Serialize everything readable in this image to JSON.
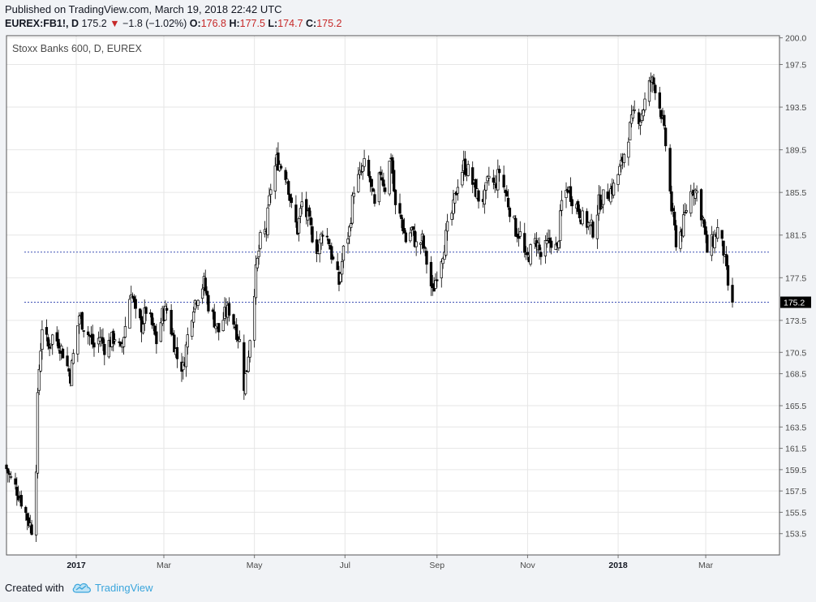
{
  "header": {
    "published": "Published on TradingView.com, March 19, 2018 22:42 UTC",
    "symbol": "EUREX:FB1!, D",
    "last": "175.2",
    "change": "−1.8 (−1.02%)",
    "open_label": "O:",
    "open": "176.8",
    "high_label": "H:",
    "high": "177.5",
    "low_label": "L:",
    "low": "174.7",
    "close_label": "C:",
    "close": "175.2",
    "down_arrow": "▼"
  },
  "footer": {
    "created_with": "Created with",
    "brand": "TradingView",
    "logo_icon": "tradingview-cloud-icon"
  },
  "colors": {
    "candle": "#000000",
    "hline": "#3f51b5",
    "grid": "#e6e6e6",
    "price_tag_bg": "#000000"
  },
  "chart_data": {
    "type": "candlestick",
    "title": "Stoxx Banks 600, D, EUREX",
    "ylim": [
      151.5,
      200.2
    ],
    "y_ticks": [
      "200.0",
      "197.5",
      "193.5",
      "189.5",
      "185.5",
      "181.5",
      "177.5",
      "173.5",
      "170.5",
      "168.5",
      "165.5",
      "163.5",
      "161.5",
      "159.5",
      "157.5",
      "155.5",
      "153.5"
    ],
    "x_ticks": [
      {
        "label": "2017",
        "bold": true
      },
      {
        "label": "Mar",
        "bold": false
      },
      {
        "label": "May",
        "bold": false
      },
      {
        "label": "Jul",
        "bold": false
      },
      {
        "label": "Sep",
        "bold": false
      },
      {
        "label": "Nov",
        "bold": false
      },
      {
        "label": "2018",
        "bold": true
      },
      {
        "label": "Mar",
        "bold": false
      }
    ],
    "horizontal_lines": [
      179.9,
      175.2
    ],
    "last_price_label": "175.2",
    "start_date": "2016-11-15",
    "series": [
      {
        "date": "2016-11-15",
        "c": 159.6
      },
      {
        "date": "2016-11-18",
        "c": 158.6
      },
      {
        "date": "2016-11-22",
        "c": 157.6
      },
      {
        "date": "2016-11-25",
        "c": 156.6
      },
      {
        "date": "2016-11-29",
        "c": 155.0
      },
      {
        "date": "2016-12-02",
        "c": 154.0
      },
      {
        "date": "2016-12-05",
        "c": 160.0
      },
      {
        "date": "2016-12-06",
        "c": 166.0
      },
      {
        "date": "2016-12-07",
        "c": 169.0
      },
      {
        "date": "2016-12-09",
        "c": 173.0
      },
      {
        "date": "2016-12-13",
        "c": 171.0
      },
      {
        "date": "2016-12-16",
        "c": 172.0
      },
      {
        "date": "2016-12-20",
        "c": 171.5
      },
      {
        "date": "2016-12-23",
        "c": 170.5
      },
      {
        "date": "2016-12-28",
        "c": 168.3
      },
      {
        "date": "2017-01-03",
        "c": 174.0
      },
      {
        "date": "2017-01-06",
        "c": 173.0
      },
      {
        "date": "2017-01-10",
        "c": 172.0
      },
      {
        "date": "2017-01-13",
        "c": 171.0
      },
      {
        "date": "2017-01-17",
        "c": 172.0
      },
      {
        "date": "2017-01-20",
        "c": 171.0
      },
      {
        "date": "2017-01-24",
        "c": 171.5
      },
      {
        "date": "2017-01-27",
        "c": 172.0
      },
      {
        "date": "2017-01-31",
        "c": 170.5
      },
      {
        "date": "2017-02-03",
        "c": 173.0
      },
      {
        "date": "2017-02-07",
        "c": 176.5
      },
      {
        "date": "2017-02-10",
        "c": 174.0
      },
      {
        "date": "2017-02-14",
        "c": 173.0
      },
      {
        "date": "2017-02-17",
        "c": 174.5
      },
      {
        "date": "2017-02-21",
        "c": 173.0
      },
      {
        "date": "2017-02-24",
        "c": 171.5
      },
      {
        "date": "2017-02-28",
        "c": 174.0
      },
      {
        "date": "2017-03-03",
        "c": 174.5
      },
      {
        "date": "2017-03-07",
        "c": 172.0
      },
      {
        "date": "2017-03-10",
        "c": 170.0
      },
      {
        "date": "2017-03-14",
        "c": 169.0
      },
      {
        "date": "2017-03-17",
        "c": 172.0
      },
      {
        "date": "2017-03-21",
        "c": 175.0
      },
      {
        "date": "2017-03-24",
        "c": 176.0
      },
      {
        "date": "2017-03-28",
        "c": 177.0
      },
      {
        "date": "2017-03-31",
        "c": 175.0
      },
      {
        "date": "2017-04-04",
        "c": 173.5
      },
      {
        "date": "2017-04-07",
        "c": 172.5
      },
      {
        "date": "2017-04-11",
        "c": 174.0
      },
      {
        "date": "2017-04-14",
        "c": 174.5
      },
      {
        "date": "2017-04-18",
        "c": 173.0
      },
      {
        "date": "2017-04-21",
        "c": 171.5
      },
      {
        "date": "2017-04-24",
        "c": 167.5
      },
      {
        "date": "2017-04-26",
        "c": 169.0
      },
      {
        "date": "2017-04-28",
        "c": 172.0
      },
      {
        "date": "2017-05-02",
        "c": 178.0
      },
      {
        "date": "2017-05-05",
        "c": 181.0
      },
      {
        "date": "2017-05-09",
        "c": 182.0
      },
      {
        "date": "2017-05-12",
        "c": 186.0
      },
      {
        "date": "2017-05-16",
        "c": 188.5
      },
      {
        "date": "2017-05-19",
        "c": 188.0
      },
      {
        "date": "2017-05-23",
        "c": 187.0
      },
      {
        "date": "2017-05-26",
        "c": 184.0
      },
      {
        "date": "2017-05-30",
        "c": 182.0
      },
      {
        "date": "2017-06-02",
        "c": 184.5
      },
      {
        "date": "2017-06-06",
        "c": 183.0
      },
      {
        "date": "2017-06-09",
        "c": 181.5
      },
      {
        "date": "2017-06-13",
        "c": 180.0
      },
      {
        "date": "2017-06-16",
        "c": 182.0
      },
      {
        "date": "2017-06-20",
        "c": 181.0
      },
      {
        "date": "2017-06-23",
        "c": 179.0
      },
      {
        "date": "2017-06-27",
        "c": 177.0
      },
      {
        "date": "2017-06-30",
        "c": 180.0
      },
      {
        "date": "2017-07-04",
        "c": 182.0
      },
      {
        "date": "2017-07-07",
        "c": 186.0
      },
      {
        "date": "2017-07-11",
        "c": 187.0
      },
      {
        "date": "2017-07-14",
        "c": 188.0
      },
      {
        "date": "2017-07-18",
        "c": 186.5
      },
      {
        "date": "2017-07-21",
        "c": 184.0
      },
      {
        "date": "2017-07-25",
        "c": 187.5
      },
      {
        "date": "2017-07-28",
        "c": 186.0
      },
      {
        "date": "2017-08-01",
        "c": 189.0
      },
      {
        "date": "2017-08-04",
        "c": 184.0
      },
      {
        "date": "2017-08-08",
        "c": 183.0
      },
      {
        "date": "2017-08-11",
        "c": 181.0
      },
      {
        "date": "2017-08-15",
        "c": 182.0
      },
      {
        "date": "2017-08-18",
        "c": 180.5
      },
      {
        "date": "2017-08-22",
        "c": 181.0
      },
      {
        "date": "2017-08-25",
        "c": 179.0
      },
      {
        "date": "2017-08-29",
        "c": 176.0
      },
      {
        "date": "2017-09-01",
        "c": 178.0
      },
      {
        "date": "2017-09-05",
        "c": 180.0
      },
      {
        "date": "2017-09-08",
        "c": 182.0
      },
      {
        "date": "2017-09-12",
        "c": 184.0
      },
      {
        "date": "2017-09-15",
        "c": 186.5
      },
      {
        "date": "2017-09-19",
        "c": 188.0
      },
      {
        "date": "2017-09-22",
        "c": 187.5
      },
      {
        "date": "2017-09-26",
        "c": 186.0
      },
      {
        "date": "2017-09-29",
        "c": 185.0
      },
      {
        "date": "2017-10-03",
        "c": 185.0
      },
      {
        "date": "2017-10-06",
        "c": 187.0
      },
      {
        "date": "2017-10-10",
        "c": 186.0
      },
      {
        "date": "2017-10-13",
        "c": 187.5
      },
      {
        "date": "2017-10-17",
        "c": 185.5
      },
      {
        "date": "2017-10-20",
        "c": 184.0
      },
      {
        "date": "2017-10-24",
        "c": 182.0
      },
      {
        "date": "2017-10-27",
        "c": 181.5
      },
      {
        "date": "2017-10-31",
        "c": 179.0
      },
      {
        "date": "2017-11-03",
        "c": 180.0
      },
      {
        "date": "2017-11-07",
        "c": 181.0
      },
      {
        "date": "2017-11-10",
        "c": 179.5
      },
      {
        "date": "2017-11-14",
        "c": 180.5
      },
      {
        "date": "2017-11-17",
        "c": 181.0
      },
      {
        "date": "2017-11-21",
        "c": 180.0
      },
      {
        "date": "2017-11-24",
        "c": 184.5
      },
      {
        "date": "2017-11-28",
        "c": 186.0
      },
      {
        "date": "2017-12-01",
        "c": 185.0
      },
      {
        "date": "2017-12-05",
        "c": 184.0
      },
      {
        "date": "2017-12-08",
        "c": 183.0
      },
      {
        "date": "2017-12-12",
        "c": 182.5
      },
      {
        "date": "2017-12-15",
        "c": 182.0
      },
      {
        "date": "2017-12-19",
        "c": 184.5
      },
      {
        "date": "2017-12-22",
        "c": 185.0
      },
      {
        "date": "2017-12-29",
        "c": 186.0
      },
      {
        "date": "2018-01-03",
        "c": 188.0
      },
      {
        "date": "2018-01-08",
        "c": 191.0
      },
      {
        "date": "2018-01-12",
        "c": 193.0
      },
      {
        "date": "2018-01-16",
        "c": 192.5
      },
      {
        "date": "2018-01-19",
        "c": 194.0
      },
      {
        "date": "2018-01-23",
        "c": 196.0
      },
      {
        "date": "2018-01-26",
        "c": 195.5
      },
      {
        "date": "2018-01-30",
        "c": 193.0
      },
      {
        "date": "2018-02-02",
        "c": 190.0
      },
      {
        "date": "2018-02-06",
        "c": 184.0
      },
      {
        "date": "2018-02-09",
        "c": 181.0
      },
      {
        "date": "2018-02-13",
        "c": 182.0
      },
      {
        "date": "2018-02-16",
        "c": 184.0
      },
      {
        "date": "2018-02-20",
        "c": 186.0
      },
      {
        "date": "2018-02-23",
        "c": 185.5
      },
      {
        "date": "2018-02-27",
        "c": 183.0
      },
      {
        "date": "2018-03-02",
        "c": 180.0
      },
      {
        "date": "2018-03-06",
        "c": 181.0
      },
      {
        "date": "2018-03-09",
        "c": 182.0
      },
      {
        "date": "2018-03-13",
        "c": 180.0
      },
      {
        "date": "2018-03-16",
        "c": 176.8
      },
      {
        "date": "2018-03-19",
        "c": 175.2
      }
    ]
  }
}
